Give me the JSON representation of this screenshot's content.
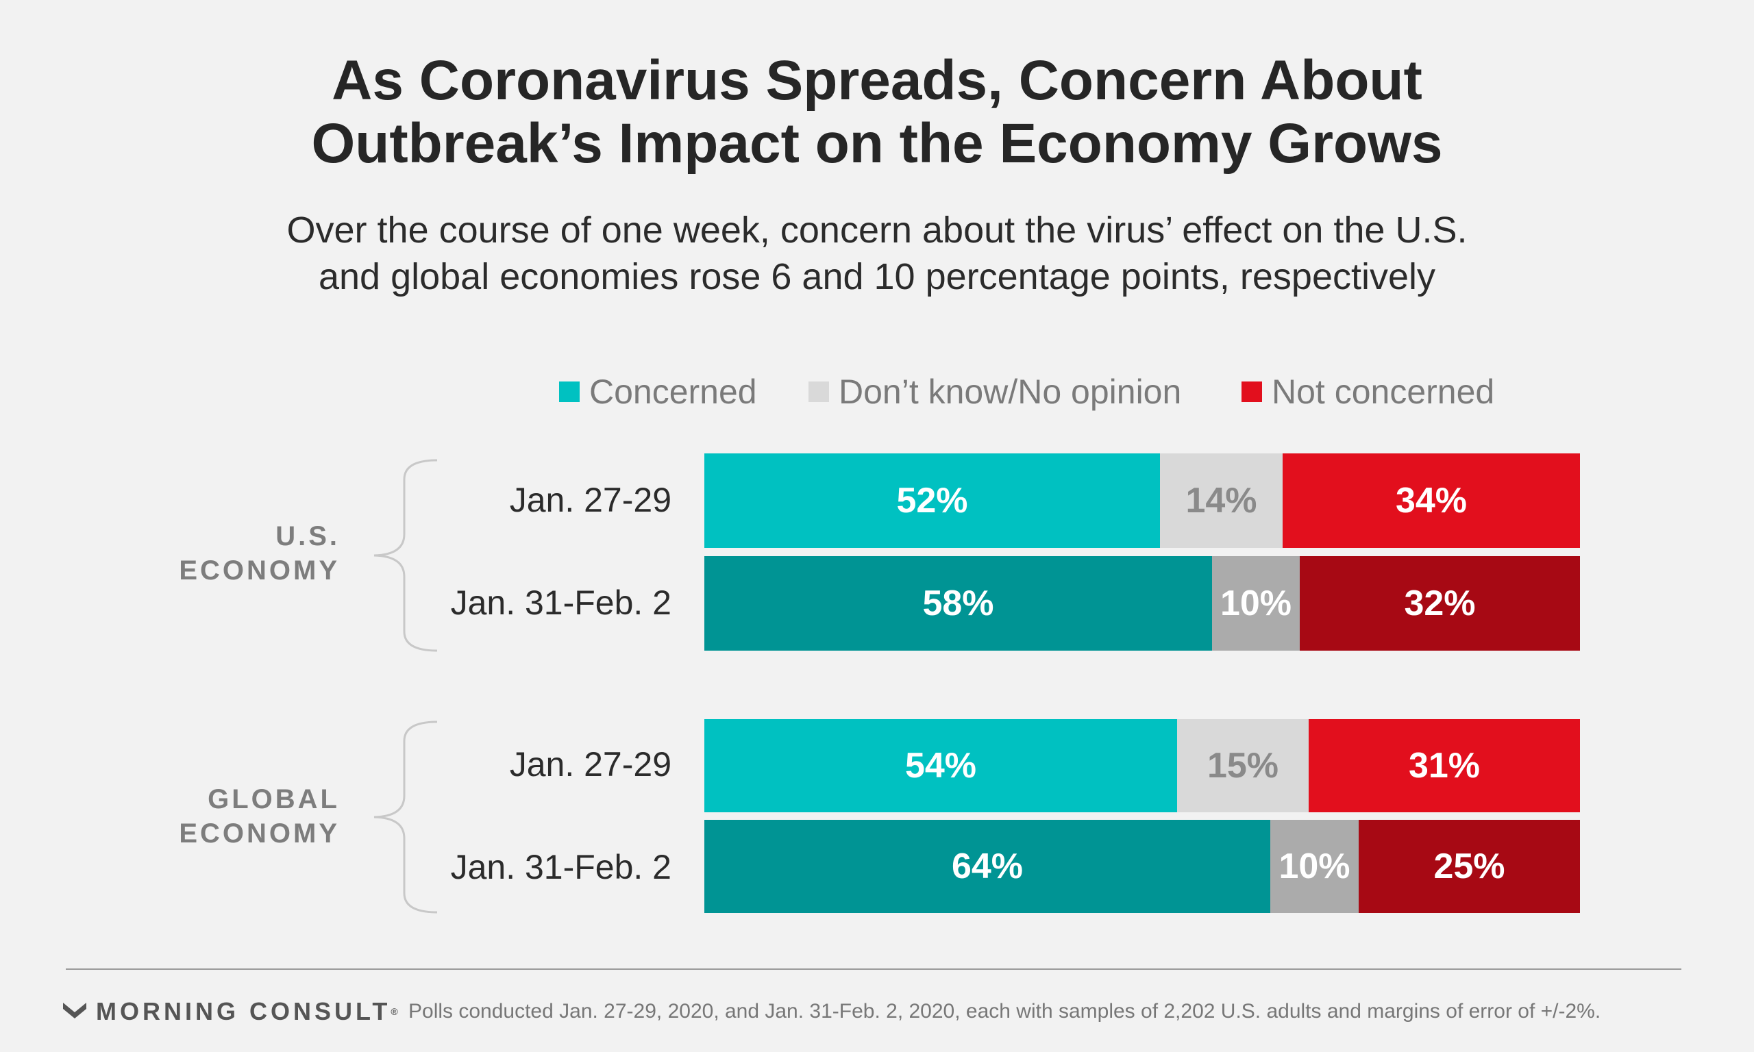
{
  "title_line1": "As Coronavirus Spreads, Concern About",
  "title_line2": "Outbreak’s Impact on the Economy Grows",
  "subtitle_line1": "Over the course of one week, concern about the virus’ effect on the U.S.",
  "subtitle_line2": "and global economies rose 6 and 10 percentage points, respectively",
  "legend": [
    {
      "label": "Concerned",
      "color": "#00c1c1"
    },
    {
      "label": "Don’t know/No opinion",
      "color": "#d9d9d9"
    },
    {
      "label": "Not concerned",
      "color": "#e20f1d"
    }
  ],
  "colors": {
    "concerned_early": "#00c1c1",
    "concerned_late": "#009494",
    "dk_early": "#d9d9d9",
    "dk_late": "#ababab",
    "not_early": "#e20f1d",
    "not_late": "#a70914"
  },
  "groups": [
    {
      "line1": "U.S.",
      "line2": "ECONOMY"
    },
    {
      "line1": "GLOBAL",
      "line2": "ECONOMY"
    }
  ],
  "chart_data": {
    "type": "bar",
    "orientation": "horizontal",
    "stacked": true,
    "title": "As Coronavirus Spreads, Concern About Outbreak’s Impact on the Economy Grows",
    "subtitle": "Over the course of one week, concern about the virus’ effect on the U.S. and global economies rose 6 and 10 percentage points, respectively",
    "legend_position": "top",
    "xlim": [
      0,
      100
    ],
    "series": [
      {
        "name": "Concerned",
        "values": [
          52,
          58,
          54,
          64
        ],
        "labels": [
          "52%",
          "58%",
          "54%",
          "64%"
        ]
      },
      {
        "name": "Don’t know/No opinion",
        "values": [
          14,
          10,
          15,
          10
        ],
        "labels": [
          "14%",
          "10%",
          "15%",
          "10%"
        ]
      },
      {
        "name": "Not concerned",
        "values": [
          34,
          32,
          31,
          25
        ],
        "labels": [
          "34%",
          "32%",
          "31%",
          "25%"
        ]
      }
    ],
    "rows": [
      {
        "group": "U.S. ECONOMY",
        "label": "Jan. 27-29",
        "period": "early"
      },
      {
        "group": "U.S. ECONOMY",
        "label": "Jan. 31-Feb. 2",
        "period": "late"
      },
      {
        "group": "GLOBAL ECONOMY",
        "label": "Jan. 27-29",
        "period": "early"
      },
      {
        "group": "GLOBAL ECONOMY",
        "label": "Jan. 31-Feb. 2",
        "period": "late"
      }
    ]
  },
  "footer": {
    "logo_text": "MORNING CONSULT",
    "logo_reg": "®",
    "source": "Polls conducted Jan. 27-29, 2020, and Jan. 31-Feb. 2, 2020, each with samples of 2,202 U.S. adults and margins of error of +/-2%."
  }
}
